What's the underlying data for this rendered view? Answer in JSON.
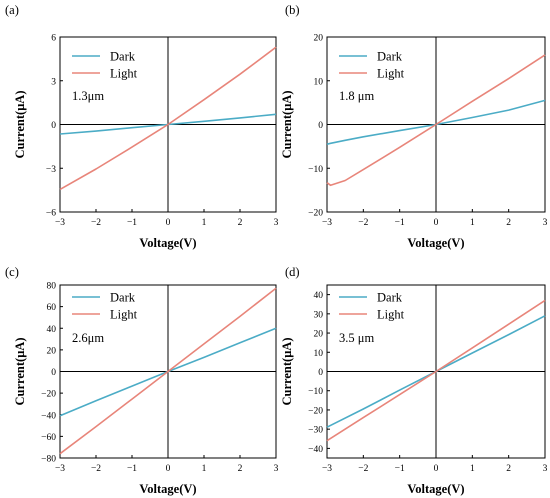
{
  "chart_data": [
    {
      "type": "line",
      "panel_label": "(a)",
      "annotation": "1.3μm",
      "xlabel": "Voltage(V)",
      "ylabel": "Current(μA)",
      "xlim": [
        -3,
        3
      ],
      "ylim": [
        -6,
        6
      ],
      "xticks": [
        -3,
        -2,
        -1,
        0,
        1,
        2,
        3
      ],
      "yticks": [
        -6,
        -3,
        0,
        3,
        6
      ],
      "x": [
        -3,
        -2,
        -1,
        0,
        1,
        2,
        3
      ],
      "series": [
        {
          "name": "Dark",
          "color": "#4BACC6",
          "values": [
            -0.65,
            -0.45,
            -0.22,
            0,
            0.22,
            0.45,
            0.7
          ]
        },
        {
          "name": "Light",
          "color": "#E8857A",
          "values": [
            -4.45,
            -3.05,
            -1.55,
            0,
            1.7,
            3.45,
            5.3
          ]
        }
      ]
    },
    {
      "type": "line",
      "panel_label": "(b)",
      "annotation": "1.8 μm",
      "xlabel": "Voltage(V)",
      "ylabel": "Current(μA)",
      "xlim": [
        -3,
        3
      ],
      "ylim": [
        -20,
        20
      ],
      "xticks": [
        -3,
        -2,
        -1,
        0,
        1,
        2,
        3
      ],
      "yticks": [
        -20,
        -10,
        0,
        10,
        20
      ],
      "x": [
        -3,
        -2.9,
        -2.5,
        -2,
        -1,
        0,
        1,
        2,
        3
      ],
      "series": [
        {
          "name": "Dark",
          "color": "#4BACC6",
          "values": [
            -4.5,
            -4.3,
            -3.6,
            -2.8,
            -1.4,
            0,
            1.6,
            3.3,
            5.5
          ]
        },
        {
          "name": "Light",
          "color": "#E8857A",
          "values": [
            -13.3,
            -13.9,
            -12.8,
            -10.3,
            -5.2,
            0,
            5.3,
            10.5,
            15.9
          ]
        }
      ]
    },
    {
      "type": "line",
      "panel_label": "(c)",
      "annotation": "2.6μm",
      "xlabel": "Voltage(V)",
      "ylabel": "Current(μA)",
      "xlim": [
        -3,
        3
      ],
      "ylim": [
        -80,
        80
      ],
      "xticks": [
        -3,
        -2,
        -1,
        0,
        1,
        2,
        3
      ],
      "yticks": [
        -80,
        -60,
        -40,
        -20,
        0,
        20,
        40,
        60,
        80
      ],
      "x": [
        -3,
        -2,
        -1,
        0,
        1,
        2,
        3
      ],
      "series": [
        {
          "name": "Dark",
          "color": "#4BACC6",
          "values": [
            -41,
            -27,
            -13.5,
            0,
            13,
            26.5,
            40
          ]
        },
        {
          "name": "Light",
          "color": "#E8857A",
          "values": [
            -76,
            -51,
            -25.5,
            0,
            25.5,
            51,
            77
          ]
        }
      ]
    },
    {
      "type": "line",
      "panel_label": "(d)",
      "annotation": "3.5 μm",
      "xlabel": "Voltage(V)",
      "ylabel": "Current(μA)",
      "xlim": [
        -3,
        3
      ],
      "ylim": [
        -45,
        45
      ],
      "xticks": [
        -3,
        -2,
        -1,
        0,
        1,
        2,
        3
      ],
      "yticks": [
        -40,
        -30,
        -20,
        -10,
        0,
        10,
        20,
        30,
        40
      ],
      "x": [
        -3,
        -2,
        -1,
        0,
        1,
        2,
        3
      ],
      "series": [
        {
          "name": "Dark",
          "color": "#4BACC6",
          "values": [
            -29,
            -19.5,
            -9.7,
            0,
            9.6,
            19.2,
            29
          ]
        },
        {
          "name": "Light",
          "color": "#E8857A",
          "values": [
            -36,
            -24,
            -12,
            0,
            12.3,
            24.6,
            37
          ]
        }
      ]
    }
  ]
}
